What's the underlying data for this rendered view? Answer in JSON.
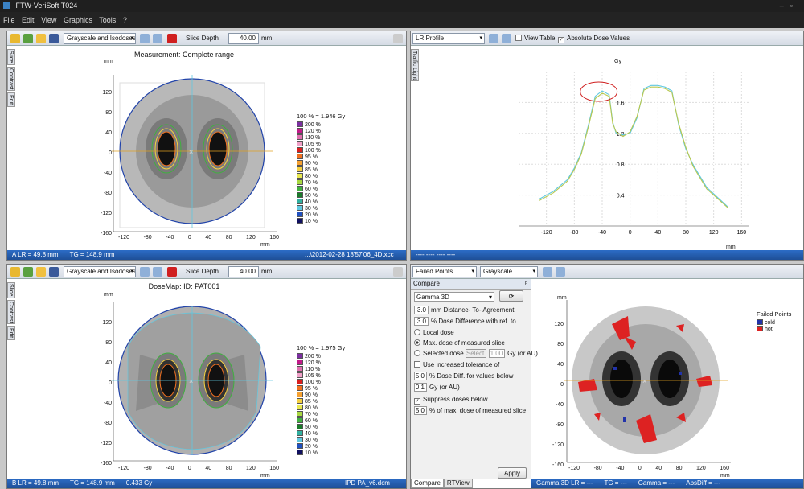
{
  "app": {
    "title": "FTW-VeriSoft T024",
    "menu": [
      "File",
      "Edit",
      "View",
      "Graphics",
      "Tools",
      "?"
    ]
  },
  "top_left": {
    "display_mode": "Grayscale and Isodoses",
    "slice_depth_label": "Slice Depth",
    "slice_depth": "40.00",
    "slice_depth_unit": "mm",
    "title": "Measurement: Complete range",
    "side_tabs": [
      "Slice",
      "Contrast",
      "Edit"
    ],
    "axis_unit": "mm",
    "y_ticks": [
      "120",
      "80",
      "40",
      "0",
      "-40",
      "-80",
      "-120",
      "-160"
    ],
    "x_ticks": [
      "-120",
      "-80",
      "-40",
      "0",
      "40",
      "80",
      "120",
      "160"
    ],
    "legend_header": "100 % = 1.946 Gy",
    "status": [
      "A  LR = 49.8 mm",
      "TG = 148.9 mm",
      "...\\2012-02-28 18'57'06_4D.xcc"
    ]
  },
  "top_right": {
    "profile": "LR Profile",
    "view_table": "View Table",
    "abs_dose": "Absolute Dose Values",
    "side_tab": "Traffic Light",
    "y_unit": "Gy",
    "y_ticks": [
      "1.6",
      "1.2",
      "0.8",
      "0.4"
    ],
    "x_ticks": [
      "-120",
      "-80",
      "-40",
      "0",
      "40",
      "80",
      "120",
      "160"
    ],
    "x_unit": "mm",
    "status": "---- ---- ---- ----"
  },
  "bottom_left": {
    "display_mode": "Grayscale and Isodoses",
    "slice_depth_label": "Slice Depth",
    "slice_depth": "40.00",
    "slice_depth_unit": "mm",
    "title": "DoseMap: ID: PAT001",
    "side_tabs": [
      "Slice",
      "Contrast",
      "Edit"
    ],
    "axis_unit": "mm",
    "y_ticks": [
      "120",
      "80",
      "40",
      "0",
      "-40",
      "-80",
      "-120",
      "-160"
    ],
    "x_ticks": [
      "-120",
      "-80",
      "-40",
      "0",
      "40",
      "80",
      "120",
      "160"
    ],
    "legend_header": "100 % = 1.975 Gy",
    "status": [
      "B  LR = 49.8 mm",
      "TG = 148.9 mm",
      "0.433 Gy",
      "IPD PA_v6.dcm"
    ]
  },
  "bottom_right": {
    "filter": "Failed Points",
    "display": "Grayscale",
    "compare_header": "Compare",
    "method": "Gamma 3D",
    "dta_value": "3.0",
    "dta_label": "mm Distance- To- Agreement",
    "dd_value": "3.0",
    "dd_label": "% Dose Difference with ref. to",
    "local_dose": "Local dose",
    "max_dose": "Max. dose of measured slice",
    "selected_dose": "Selected dose",
    "select_btn": "Select",
    "selected_value": "1.00",
    "selected_unit": "Gy (or AU)",
    "increased_tol": "Use increased tolerance of",
    "tol_value": "5.0",
    "tol_label": "% Dose Diff. for values below",
    "tol_gy_value": "0.1",
    "tol_gy_label": "Gy (or AU)",
    "suppress": "Suppress doses below",
    "suppress_value": "5.0",
    "suppress_label": "% of max. dose of measured slice",
    "apply": "Apply",
    "tabs": [
      "Compare",
      "RTView"
    ],
    "axis_unit": "mm",
    "y_ticks": [
      "120",
      "80",
      "40",
      "0",
      "-40",
      "-80",
      "-120",
      "-160"
    ],
    "x_ticks": [
      "-120",
      "-80",
      "-40",
      "0",
      "40",
      "80",
      "120",
      "160"
    ],
    "legend_header": "Failed Points",
    "legend": [
      {
        "label": "cold",
        "color": "#2233aa"
      },
      {
        "label": "hot",
        "color": "#dd2222"
      }
    ],
    "status": [
      "Gamma 3D LR = ---",
      "TG = ---",
      "Gamma = ---",
      "AbsDiff = ---"
    ]
  },
  "isodose_legend": [
    {
      "label": "200 %",
      "color": "#7b2fa0"
    },
    {
      "label": "120 %",
      "color": "#c21a8a"
    },
    {
      "label": "110 %",
      "color": "#e070b0"
    },
    {
      "label": "105 %",
      "color": "#f0a0c8"
    },
    {
      "label": "100 %",
      "color": "#d91e1e"
    },
    {
      "label": "95 %",
      "color": "#f07020"
    },
    {
      "label": "90 %",
      "color": "#f5a030"
    },
    {
      "label": "85 %",
      "color": "#f5d040"
    },
    {
      "label": "80 %",
      "color": "#e8e850"
    },
    {
      "label": "70 %",
      "color": "#a8d840"
    },
    {
      "label": "60 %",
      "color": "#40b040"
    },
    {
      "label": "50 %",
      "color": "#1a7a2a"
    },
    {
      "label": "40 %",
      "color": "#30b0a0"
    },
    {
      "label": "30 %",
      "color": "#60c8e0"
    },
    {
      "label": "20 %",
      "color": "#2050c0"
    },
    {
      "label": "10 %",
      "color": "#101060"
    }
  ],
  "chart_data": {
    "type": "line",
    "xlabel": "mm",
    "ylabel": "Gy",
    "xlim": [
      -160,
      170
    ],
    "ylim": [
      0,
      2.0
    ],
    "series": [
      {
        "x": [
          -130,
          -110,
          -90,
          -80,
          -70,
          -60,
          -50,
          -40,
          -30,
          -25,
          -20,
          -10,
          0,
          10,
          20,
          30,
          40,
          50,
          60,
          70,
          80,
          90,
          110,
          140
        ],
        "y": [
          0.35,
          0.45,
          0.6,
          0.75,
          0.95,
          1.3,
          1.68,
          1.75,
          1.7,
          1.35,
          1.2,
          1.18,
          1.2,
          1.4,
          1.78,
          1.82,
          1.82,
          1.8,
          1.75,
          1.3,
          1.0,
          0.8,
          0.5,
          0.25
        ]
      },
      {
        "x": [
          -130,
          -110,
          -90,
          -80,
          -70,
          -60,
          -50,
          -40,
          -30,
          -25,
          -20,
          -10,
          0,
          10,
          20,
          30,
          40,
          50,
          60,
          70,
          80,
          90,
          110,
          140
        ],
        "y": [
          0.33,
          0.43,
          0.58,
          0.73,
          0.93,
          1.28,
          1.65,
          1.72,
          1.68,
          1.33,
          1.22,
          1.16,
          1.22,
          1.42,
          1.76,
          1.8,
          1.8,
          1.78,
          1.73,
          1.32,
          1.02,
          0.78,
          0.48,
          0.24
        ]
      }
    ]
  }
}
